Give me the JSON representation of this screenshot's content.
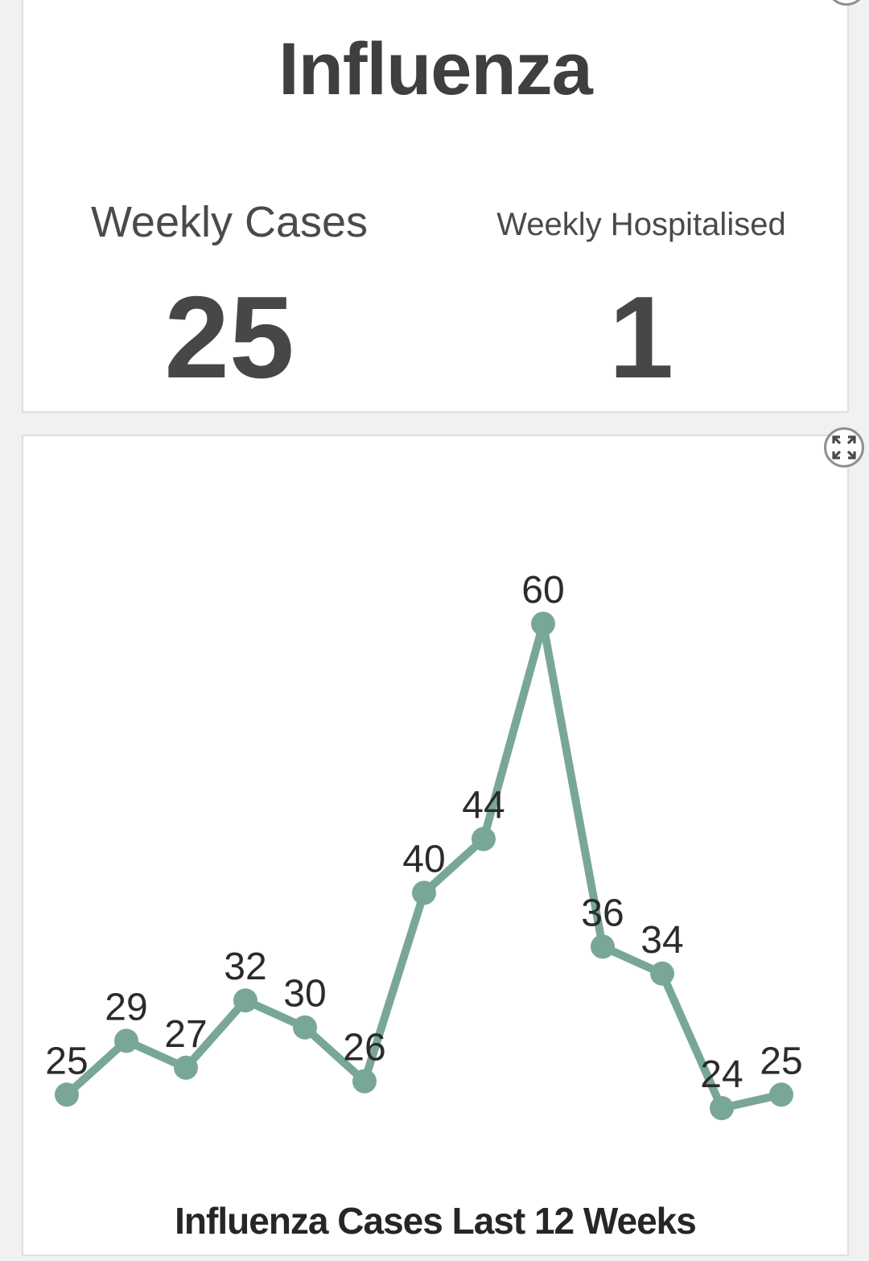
{
  "summary": {
    "title": "Influenza",
    "metrics": [
      {
        "label": "Weekly Cases",
        "value": "25"
      },
      {
        "label": "Weekly Hospitalised",
        "value": "1"
      }
    ]
  },
  "chart_data": {
    "type": "line",
    "title": "Influenza Cases Last 12 Weeks",
    "series": [
      {
        "name": "Influenza Cases",
        "values": [
          25,
          29,
          27,
          32,
          30,
          26,
          40,
          44,
          60,
          36,
          34,
          24,
          25
        ]
      }
    ],
    "data_labels": true,
    "line_color": "#79a795",
    "marker": "circle",
    "grid": false,
    "legend": false,
    "x_axis": {
      "visible": false
    },
    "y_axis": {
      "visible": false
    },
    "ylim": [
      24,
      60
    ]
  }
}
